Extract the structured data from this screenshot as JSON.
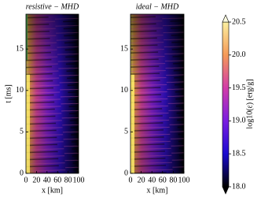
{
  "chart_data": [
    {
      "type": "heatmap",
      "title": "resistive − MHD",
      "xlabel": "x [km]",
      "ylabel": "t [ms]",
      "xlim": [
        0,
        100
      ],
      "xticks": [
        0,
        20,
        40,
        60,
        80,
        100
      ],
      "ylim": [
        0,
        19.2
      ],
      "yticks": [
        0,
        5,
        10,
        15
      ]
    },
    {
      "type": "heatmap",
      "title": "ideal − MHD",
      "xlabel": "x [km]",
      "xlim": [
        0,
        100
      ],
      "xticks": [
        0,
        20,
        40,
        60,
        80,
        100
      ],
      "ylim": [
        0,
        19.2
      ],
      "yticks": [
        0,
        5,
        10,
        15
      ]
    }
  ],
  "colorbar": {
    "label": "log10(ε) [erg/g]",
    "lim": [
      18,
      20.5
    ],
    "ticks": [
      {
        "value": 18,
        "label": "18.0"
      },
      {
        "value": 18.5,
        "label": "18.5"
      },
      {
        "value": 19,
        "label": "19.0"
      },
      {
        "value": 19.5,
        "label": "19.5"
      },
      {
        "value": 20,
        "label": "20.0"
      },
      {
        "value": 20.5,
        "label": "20.5"
      }
    ]
  }
}
